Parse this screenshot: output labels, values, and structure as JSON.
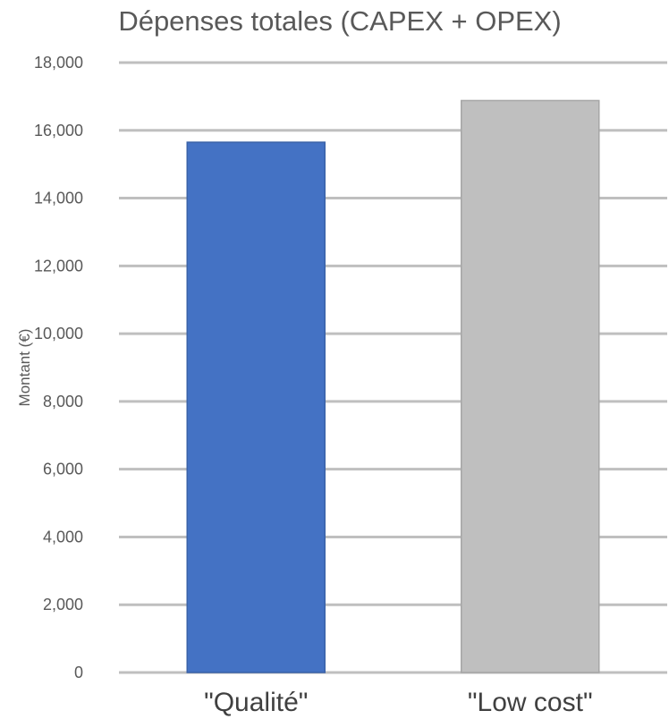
{
  "chart_data": {
    "type": "bar",
    "title": "Dépenses totales (CAPEX + OPEX)",
    "xlabel": "",
    "ylabel": "Montant (€)",
    "categories": [
      "\"Qualité\"",
      "\"Low cost\""
    ],
    "values": [
      15650,
      16880
    ],
    "ylim": [
      0,
      18000
    ],
    "yticks": [
      0,
      2000,
      4000,
      6000,
      8000,
      10000,
      12000,
      14000,
      16000,
      18000
    ],
    "ytick_labels": [
      "0",
      "2,000",
      "4,000",
      "6,000",
      "8,000",
      "10,000",
      "12,000",
      "14,000",
      "16,000",
      "18,000"
    ],
    "bar_colors": [
      "#4472c4",
      "#bfbfbf"
    ],
    "bar_edge_colors": [
      "#3a62a8",
      "#a6a6a6"
    ],
    "grid": true,
    "legend": "none"
  }
}
